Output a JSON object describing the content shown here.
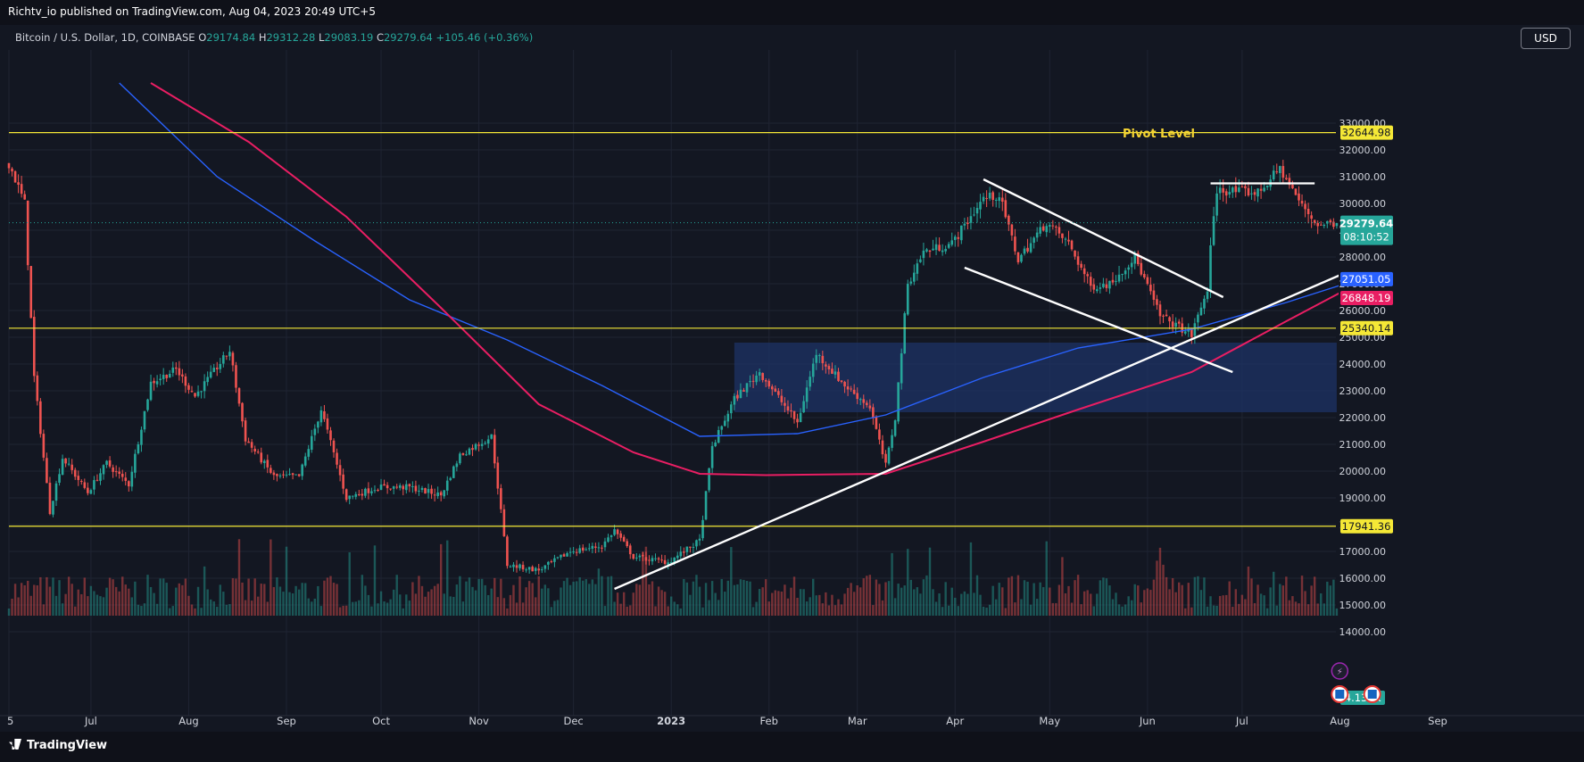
{
  "header": {
    "publisher": "Richtv_io published on TradingView.com, Aug 04, 2023 20:49 UTC+5",
    "symbol": "Bitcoin / U.S. Dollar, 1D, COINBASE",
    "open_label": "O",
    "open": "29174.84",
    "high_label": "H",
    "high": "29312.28",
    "low_label": "L",
    "low": "29083.19",
    "close_label": "C",
    "close": "29279.64",
    "change": "+105.46 (+0.36%)",
    "currency": "USD"
  },
  "footer": {
    "brand": "TradingView"
  },
  "chart_data": {
    "type": "candlestick",
    "y_axis": {
      "ticks": [
        14000,
        15000,
        16000,
        17000,
        18000,
        19000,
        20000,
        21000,
        22000,
        23000,
        24000,
        25000,
        26000,
        27000,
        28000,
        29000,
        30000,
        31000,
        32000,
        33000
      ],
      "tick_labels": [
        "14000.00",
        "15000.00",
        "16000.00",
        "17000.00",
        "18000.00",
        "19000.00",
        "20000.00",
        "21000.00",
        "22000.00",
        "23000.00",
        "24000.00",
        "25000.00",
        "26000.00",
        "27000.00",
        "28000.00",
        "29000.00",
        "30000.00",
        "31000.00",
        "32000.00",
        "33000.00"
      ]
    },
    "x_axis": {
      "labels": [
        "5",
        "Jul",
        "Aug",
        "Sep",
        "Oct",
        "Nov",
        "Dec",
        "2023",
        "Feb",
        "Mar",
        "Apr",
        "May",
        "Jun",
        "Jul",
        "Aug",
        "Sep"
      ]
    },
    "price_path": [
      [
        "2022-06-05",
        31500
      ],
      [
        "2022-06-10",
        30000
      ],
      [
        "2022-06-13",
        23500
      ],
      [
        "2022-06-18",
        18500
      ],
      [
        "2022-06-22",
        20500
      ],
      [
        "2022-06-30",
        19200
      ],
      [
        "2022-07-06",
        20300
      ],
      [
        "2022-07-13",
        19500
      ],
      [
        "2022-07-20",
        23300
      ],
      [
        "2022-07-28",
        23800
      ],
      [
        "2022-08-03",
        22800
      ],
      [
        "2022-08-14",
        24500
      ],
      [
        "2022-08-19",
        21200
      ],
      [
        "2022-08-28",
        19800
      ],
      [
        "2022-09-05",
        19800
      ],
      [
        "2022-09-12",
        22300
      ],
      [
        "2022-09-20",
        19000
      ],
      [
        "2022-09-30",
        19400
      ],
      [
        "2022-10-10",
        19400
      ],
      [
        "2022-10-20",
        19100
      ],
      [
        "2022-10-26",
        20600
      ],
      [
        "2022-11-05",
        21300
      ],
      [
        "2022-11-08",
        18500
      ],
      [
        "2022-11-10",
        16500
      ],
      [
        "2022-11-20",
        16300
      ],
      [
        "2022-11-30",
        17000
      ],
      [
        "2022-12-10",
        17200
      ],
      [
        "2022-12-14",
        17800
      ],
      [
        "2022-12-20",
        16800
      ],
      [
        "2022-12-31",
        16600
      ],
      [
        "2023-01-10",
        17400
      ],
      [
        "2023-01-14",
        20900
      ],
      [
        "2023-01-21",
        22700
      ],
      [
        "2023-01-29",
        23700
      ],
      [
        "2023-02-10",
        21800
      ],
      [
        "2023-02-16",
        24400
      ],
      [
        "2023-02-25",
        23200
      ],
      [
        "2023-03-05",
        22400
      ],
      [
        "2023-03-10",
        20200
      ],
      [
        "2023-03-13",
        22000
      ],
      [
        "2023-03-17",
        27000
      ],
      [
        "2023-03-22",
        28200
      ],
      [
        "2023-03-31",
        28500
      ],
      [
        "2023-04-10",
        30200
      ],
      [
        "2023-04-15",
        30300
      ],
      [
        "2023-04-21",
        27900
      ],
      [
        "2023-04-30",
        29300
      ],
      [
        "2023-05-07",
        28500
      ],
      [
        "2023-05-14",
        26900
      ],
      [
        "2023-05-20",
        27000
      ],
      [
        "2023-05-28",
        28000
      ],
      [
        "2023-06-05",
        25800
      ],
      [
        "2023-06-15",
        25100
      ],
      [
        "2023-06-20",
        26800
      ],
      [
        "2023-06-21",
        28300
      ],
      [
        "2023-06-23",
        30500
      ],
      [
        "2023-07-06",
        30400
      ],
      [
        "2023-07-13",
        31300
      ],
      [
        "2023-07-20",
        29900
      ],
      [
        "2023-07-25",
        29200
      ],
      [
        "2023-07-31",
        29300
      ],
      [
        "2023-08-04",
        29279.64
      ]
    ],
    "ma_blue": [
      [
        "2022-07-10",
        34500
      ],
      [
        "2022-08-10",
        31000
      ],
      [
        "2022-09-10",
        28600
      ],
      [
        "2022-10-10",
        26400
      ],
      [
        "2022-11-10",
        24900
      ],
      [
        "2022-12-10",
        23200
      ],
      [
        "2023-01-10",
        21300
      ],
      [
        "2023-02-10",
        21400
      ],
      [
        "2023-03-10",
        22100
      ],
      [
        "2023-04-10",
        23500
      ],
      [
        "2023-05-10",
        24600
      ],
      [
        "2023-06-15",
        25300
      ],
      [
        "2023-07-15",
        26300
      ],
      [
        "2023-08-04",
        27051.05
      ]
    ],
    "ma_red": [
      [
        "2022-07-20",
        34500
      ],
      [
        "2022-08-20",
        32300
      ],
      [
        "2022-09-20",
        29500
      ],
      [
        "2022-10-20",
        26100
      ],
      [
        "2022-11-20",
        22500
      ],
      [
        "2022-12-20",
        20700
      ],
      [
        "2023-01-10",
        19900
      ],
      [
        "2023-01-31",
        19850
      ],
      [
        "2023-03-10",
        19900
      ],
      [
        "2023-04-10",
        21100
      ],
      [
        "2023-05-10",
        22300
      ],
      [
        "2023-06-15",
        23700
      ],
      [
        "2023-07-15",
        25600
      ],
      [
        "2023-08-04",
        26848.19
      ]
    ],
    "horizontal_levels": [
      32644.98,
      25340.14,
      17941.36
    ],
    "level_labels": [
      "32644.98",
      "25340.14",
      "17941.36"
    ],
    "price_labels": {
      "last": "29279.64",
      "countdown": "08:10:52",
      "ma_blue": "27051.05",
      "ma_red": "26848.19"
    },
    "annotations": {
      "pivot": "Pivot Level"
    },
    "volume_label": "4.138K",
    "colors": {
      "up": "#26a69a",
      "down": "#ef5350",
      "ma_blue": "#2962ff",
      "ma_red": "#e91e63",
      "level": "#f5e836",
      "zone": "#1e3366",
      "trendline": "#ffffff"
    }
  }
}
